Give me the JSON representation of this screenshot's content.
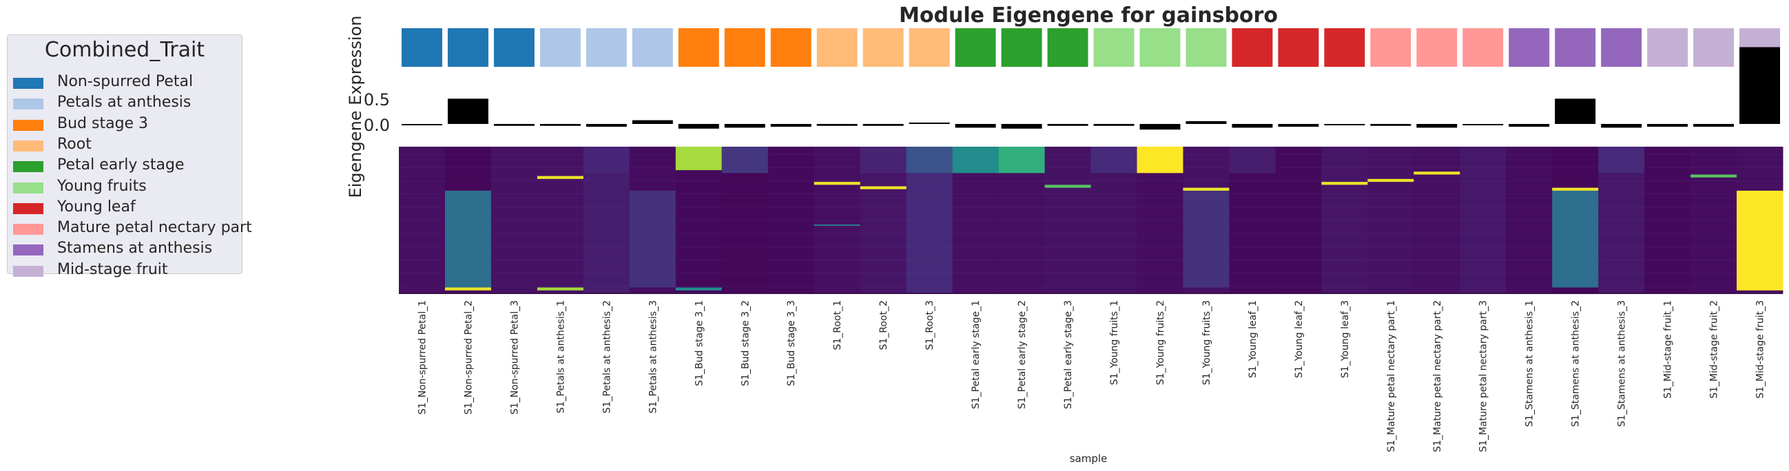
{
  "chart_data": {
    "type": "heatmap",
    "title": "Module Eigengene for gainsboro",
    "ylabel": "Eigengene Expression",
    "xlabel": "sample",
    "y_ticks": [
      0.5,
      0.0
    ],
    "ylim": [
      -0.1,
      0.85
    ],
    "legend": {
      "title": "Combined_Trait",
      "placement": "left",
      "items": [
        {
          "label": "Non-spurred Petal",
          "color": "#1f77b4"
        },
        {
          "label": "Petals at anthesis",
          "color": "#aec7e8"
        },
        {
          "label": "Bud stage 3",
          "color": "#ff7f0e"
        },
        {
          "label": "Root",
          "color": "#ffbb78"
        },
        {
          "label": "Petal early stage",
          "color": "#2ca02c"
        },
        {
          "label": "Young fruits",
          "color": "#98df8a"
        },
        {
          "label": "Young leaf",
          "color": "#d62728"
        },
        {
          "label": "Mature petal nectary part",
          "color": "#ff9896"
        },
        {
          "label": "Stamens at anthesis",
          "color": "#9467bd"
        },
        {
          "label": "Mid-stage fruit",
          "color": "#c5b0d5"
        }
      ]
    },
    "samples": [
      {
        "name": "S1_Non-spurred Petal_1",
        "trait": 0,
        "eigengene": -0.01
      },
      {
        "name": "S1_Non-spurred Petal_2",
        "trait": 0,
        "eigengene": 0.27
      },
      {
        "name": "S1_Non-spurred Petal_3",
        "trait": 0,
        "eigengene": -0.02
      },
      {
        "name": "S1_Petals at anthesis_1",
        "trait": 1,
        "eigengene": -0.02
      },
      {
        "name": "S1_Petals at anthesis_2",
        "trait": 1,
        "eigengene": -0.03
      },
      {
        "name": "S1_Petals at anthesis_3",
        "trait": 1,
        "eigengene": 0.04
      },
      {
        "name": "S1_Bud stage 3_1",
        "trait": 2,
        "eigengene": -0.05
      },
      {
        "name": "S1_Bud stage 3_2",
        "trait": 2,
        "eigengene": -0.04
      },
      {
        "name": "S1_Bud stage 3_3",
        "trait": 2,
        "eigengene": -0.03
      },
      {
        "name": "S1_Root_1",
        "trait": 3,
        "eigengene": -0.02
      },
      {
        "name": "S1_Root_2",
        "trait": 3,
        "eigengene": -0.02
      },
      {
        "name": "S1_Root_3",
        "trait": 3,
        "eigengene": 0.01
      },
      {
        "name": "S1_Petal early stage_1",
        "trait": 4,
        "eigengene": -0.04
      },
      {
        "name": "S1_Petal early stage_2",
        "trait": 4,
        "eigengene": -0.05
      },
      {
        "name": "S1_Petal early stage_3",
        "trait": 4,
        "eigengene": -0.02
      },
      {
        "name": "S1_Young fruits_1",
        "trait": 5,
        "eigengene": -0.02
      },
      {
        "name": "S1_Young fruits_2",
        "trait": 5,
        "eigengene": -0.06
      },
      {
        "name": "S1_Young fruits_3",
        "trait": 5,
        "eigengene": 0.03
      },
      {
        "name": "S1_Young leaf_1",
        "trait": 6,
        "eigengene": -0.04
      },
      {
        "name": "S1_Young leaf_2",
        "trait": 6,
        "eigengene": -0.03
      },
      {
        "name": "S1_Young leaf_3",
        "trait": 6,
        "eigengene": -0.01
      },
      {
        "name": "S1_Mature petal nectary part_1",
        "trait": 7,
        "eigengene": -0.02
      },
      {
        "name": "S1_Mature petal nectary part_2",
        "trait": 7,
        "eigengene": -0.04
      },
      {
        "name": "S1_Mature petal nectary part_3",
        "trait": 7,
        "eigengene": -0.01
      },
      {
        "name": "S1_Stamens at anthesis_1",
        "trait": 8,
        "eigengene": -0.03
      },
      {
        "name": "S1_Stamens at anthesis_2",
        "trait": 8,
        "eigengene": 0.27
      },
      {
        "name": "S1_Stamens at anthesis_3",
        "trait": 8,
        "eigengene": -0.04
      },
      {
        "name": "S1_Mid-stage fruit_1",
        "trait": 9,
        "eigengene": -0.03
      },
      {
        "name": "S1_Mid-stage fruit_2",
        "trait": 9,
        "eigengene": -0.03
      },
      {
        "name": "S1_Mid-stage fruit_3",
        "trait": 9,
        "eigengene": 0.82
      }
    ],
    "heatmap": {
      "colormap": "viridis",
      "value_range": [
        0,
        1
      ],
      "row_count": 100,
      "columns": [
        {
          "base": 0.05,
          "blocks": []
        },
        {
          "base": 0.02,
          "blocks": [
            {
              "rows": [
                30,
                96
              ],
              "value": 0.45
            },
            {
              "rows": [
                96,
                98
              ],
              "value": 0.98
            }
          ]
        },
        {
          "base": 0.06,
          "blocks": []
        },
        {
          "base": 0.06,
          "blocks": [
            {
              "rows": [
                20,
                22
              ],
              "value": 0.98
            },
            {
              "rows": [
                96,
                98
              ],
              "value": 0.9
            }
          ]
        },
        {
          "base": 0.1,
          "blocks": [
            {
              "rows": [
                0,
                18
              ],
              "value": 0.13
            }
          ]
        },
        {
          "base": 0.04,
          "blocks": [
            {
              "rows": [
                30,
                96
              ],
              "value": 0.18
            }
          ]
        },
        {
          "base": 0.03,
          "blocks": [
            {
              "rows": [
                0,
                16
              ],
              "value": 0.9
            },
            {
              "rows": [
                96,
                98
              ],
              "value": 0.6
            }
          ]
        },
        {
          "base": 0.02,
          "blocks": [
            {
              "rows": [
                0,
                18
              ],
              "value": 0.2
            }
          ]
        },
        {
          "base": 0.03,
          "blocks": []
        },
        {
          "base": 0.05,
          "blocks": [
            {
              "rows": [
                24,
                26
              ],
              "value": 0.98
            },
            {
              "rows": [
                53,
                54
              ],
              "value": 0.5
            }
          ]
        },
        {
          "base": 0.07,
          "blocks": [
            {
              "rows": [
                0,
                18
              ],
              "value": 0.12
            },
            {
              "rows": [
                27,
                29
              ],
              "value": 0.98
            }
          ]
        },
        {
          "base": 0.15,
          "blocks": [
            {
              "rows": [
                0,
                18
              ],
              "value": 0.32
            }
          ]
        },
        {
          "base": 0.05,
          "blocks": [
            {
              "rows": [
                0,
                18
              ],
              "value": 0.6
            }
          ]
        },
        {
          "base": 0.05,
          "blocks": [
            {
              "rows": [
                0,
                18
              ],
              "value": 0.72
            }
          ]
        },
        {
          "base": 0.06,
          "blocks": [
            {
              "rows": [
                26,
                28
              ],
              "value": 0.8
            }
          ]
        },
        {
          "base": 0.06,
          "blocks": [
            {
              "rows": [
                0,
                18
              ],
              "value": 0.15
            }
          ]
        },
        {
          "base": 0.04,
          "blocks": [
            {
              "rows": [
                0,
                18
              ],
              "value": 1.0
            }
          ]
        },
        {
          "base": 0.06,
          "blocks": [
            {
              "rows": [
                28,
                96
              ],
              "value": 0.18
            },
            {
              "rows": [
                28,
                30
              ],
              "value": 0.98
            }
          ]
        },
        {
          "base": 0.03,
          "blocks": [
            {
              "rows": [
                0,
                18
              ],
              "value": 0.1
            }
          ]
        },
        {
          "base": 0.03,
          "blocks": []
        },
        {
          "base": 0.07,
          "blocks": [
            {
              "rows": [
                24,
                26
              ],
              "value": 0.98
            }
          ]
        },
        {
          "base": 0.06,
          "blocks": [
            {
              "rows": [
                22,
                24
              ],
              "value": 0.98
            }
          ]
        },
        {
          "base": 0.05,
          "blocks": [
            {
              "rows": [
                17,
                19
              ],
              "value": 0.98
            }
          ]
        },
        {
          "base": 0.08,
          "blocks": []
        },
        {
          "base": 0.04,
          "blocks": []
        },
        {
          "base": 0.02,
          "blocks": [
            {
              "rows": [
                30,
                96
              ],
              "value": 0.45
            },
            {
              "rows": [
                28,
                30
              ],
              "value": 0.98
            }
          ]
        },
        {
          "base": 0.08,
          "blocks": [
            {
              "rows": [
                0,
                18
              ],
              "value": 0.15
            }
          ]
        },
        {
          "base": 0.03,
          "blocks": []
        },
        {
          "base": 0.04,
          "blocks": [
            {
              "rows": [
                19,
                21
              ],
              "value": 0.8
            }
          ]
        },
        {
          "base": 0.05,
          "blocks": [
            {
              "rows": [
                30,
                98
              ],
              "value": 1.0
            }
          ]
        }
      ]
    }
  }
}
